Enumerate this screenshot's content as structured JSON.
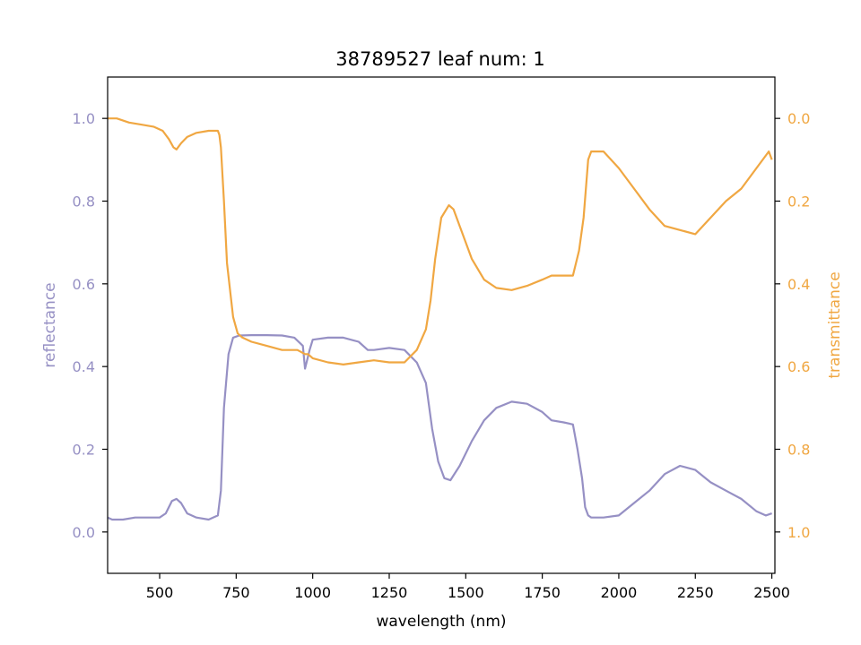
{
  "chart_data": {
    "type": "line",
    "title": "38789527 leaf num: 1",
    "xlabel": "wavelength (nm)",
    "xlim": [
      330,
      2510
    ],
    "xticks": [
      500,
      750,
      1000,
      1250,
      1500,
      1750,
      2000,
      2250,
      2500
    ],
    "colors": {
      "reflectance": "#9690c4",
      "transmittance": "#f0a742"
    },
    "left_axis": {
      "label": "reflectance",
      "ylim": [
        -0.1,
        1.1
      ],
      "ticks": [
        0.0,
        0.2,
        0.4,
        0.6,
        0.8,
        1.0
      ],
      "tick_labels": [
        "0.0",
        "0.2",
        "0.4",
        "0.6",
        "0.8",
        "1.0"
      ]
    },
    "right_axis": {
      "label": "transmittance",
      "ylim": [
        1.1,
        -0.1
      ],
      "inverted": true,
      "ticks": [
        0.0,
        0.2,
        0.4,
        0.6,
        0.8,
        1.0
      ],
      "tick_labels": [
        "0.0",
        "0.2",
        "0.4",
        "0.6",
        "0.8",
        "1.0"
      ]
    },
    "series": [
      {
        "name": "reflectance",
        "axis": "left",
        "x": [
          330,
          345,
          380,
          420,
          460,
          500,
          520,
          540,
          555,
          570,
          590,
          620,
          660,
          690,
          700,
          710,
          725,
          740,
          760,
          800,
          850,
          900,
          940,
          968,
          975,
          980,
          990,
          1000,
          1050,
          1100,
          1150,
          1180,
          1200,
          1250,
          1300,
          1340,
          1370,
          1390,
          1410,
          1430,
          1450,
          1480,
          1520,
          1560,
          1600,
          1650,
          1700,
          1750,
          1780,
          1820,
          1850,
          1865,
          1880,
          1890,
          1900,
          1910,
          1950,
          2000,
          2050,
          2100,
          2150,
          2200,
          2250,
          2300,
          2350,
          2400,
          2450,
          2480,
          2500
        ],
        "values": [
          0.035,
          0.03,
          0.03,
          0.035,
          0.035,
          0.035,
          0.045,
          0.075,
          0.08,
          0.07,
          0.045,
          0.035,
          0.03,
          0.04,
          0.1,
          0.3,
          0.43,
          0.47,
          0.475,
          0.476,
          0.476,
          0.475,
          0.47,
          0.45,
          0.395,
          0.41,
          0.44,
          0.465,
          0.47,
          0.47,
          0.46,
          0.44,
          0.44,
          0.445,
          0.44,
          0.41,
          0.36,
          0.25,
          0.17,
          0.13,
          0.125,
          0.16,
          0.22,
          0.27,
          0.3,
          0.315,
          0.31,
          0.29,
          0.27,
          0.265,
          0.26,
          0.2,
          0.13,
          0.06,
          0.04,
          0.035,
          0.035,
          0.04,
          0.07,
          0.1,
          0.14,
          0.16,
          0.15,
          0.12,
          0.1,
          0.08,
          0.05,
          0.04,
          0.045
        ]
      },
      {
        "name": "transmittance",
        "axis": "right",
        "x": [
          330,
          360,
          400,
          440,
          480,
          510,
          530,
          545,
          555,
          570,
          590,
          620,
          660,
          690,
          695,
          700,
          710,
          720,
          740,
          755,
          770,
          800,
          850,
          900,
          950,
          975,
          985,
          1000,
          1050,
          1100,
          1150,
          1200,
          1250,
          1300,
          1340,
          1370,
          1385,
          1400,
          1420,
          1445,
          1460,
          1480,
          1520,
          1560,
          1600,
          1650,
          1700,
          1750,
          1780,
          1820,
          1850,
          1870,
          1885,
          1900,
          1910,
          1920,
          1950,
          2000,
          2050,
          2100,
          2150,
          2200,
          2250,
          2300,
          2350,
          2400,
          2450,
          2490,
          2500
        ],
        "values": [
          0.0,
          0.0,
          0.01,
          0.015,
          0.02,
          0.03,
          0.05,
          0.07,
          0.075,
          0.06,
          0.045,
          0.035,
          0.03,
          0.03,
          0.04,
          0.07,
          0.2,
          0.35,
          0.48,
          0.52,
          0.53,
          0.54,
          0.55,
          0.56,
          0.56,
          0.57,
          0.57,
          0.58,
          0.59,
          0.595,
          0.59,
          0.585,
          0.59,
          0.59,
          0.56,
          0.51,
          0.44,
          0.34,
          0.24,
          0.21,
          0.22,
          0.26,
          0.34,
          0.39,
          0.41,
          0.415,
          0.405,
          0.39,
          0.38,
          0.38,
          0.38,
          0.32,
          0.24,
          0.1,
          0.08,
          0.08,
          0.08,
          0.12,
          0.17,
          0.22,
          0.26,
          0.27,
          0.28,
          0.24,
          0.2,
          0.17,
          0.12,
          0.08,
          0.1
        ]
      }
    ]
  }
}
